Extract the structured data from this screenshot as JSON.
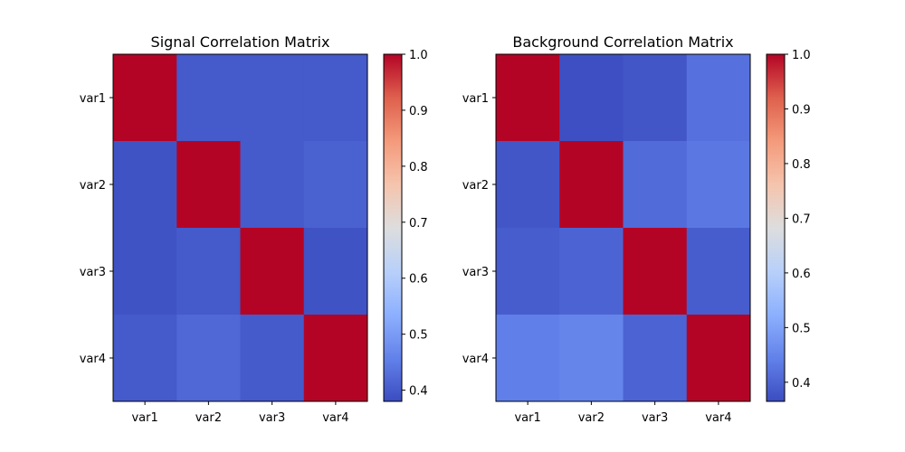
{
  "chart_data": [
    {
      "type": "heatmap",
      "title": "Signal Correlation Matrix",
      "x_categories": [
        "var1",
        "var2",
        "var3",
        "var4"
      ],
      "y_categories": [
        "var1",
        "var2",
        "var3",
        "var4"
      ],
      "values": [
        [
          1.0,
          0.4,
          0.4,
          0.4
        ],
        [
          0.39,
          1.0,
          0.4,
          0.41
        ],
        [
          0.39,
          0.4,
          1.0,
          0.39
        ],
        [
          0.4,
          0.42,
          0.4,
          1.0
        ]
      ],
      "colormap": "coolwarm",
      "colorbar": {
        "range": [
          0.38,
          1.0
        ],
        "ticks": [
          0.4,
          0.5,
          0.6,
          0.7,
          0.8,
          0.9,
          1.0
        ],
        "tick_labels": [
          "0.4",
          "0.5",
          "0.6",
          "0.7",
          "0.8",
          "0.9",
          "1.0"
        ]
      }
    },
    {
      "type": "heatmap",
      "title": "Background Correlation Matrix",
      "x_categories": [
        "var1",
        "var2",
        "var3",
        "var4"
      ],
      "y_categories": [
        "var1",
        "var2",
        "var3",
        "var4"
      ],
      "values": [
        [
          1.0,
          0.37,
          0.38,
          0.42
        ],
        [
          0.38,
          1.0,
          0.41,
          0.43
        ],
        [
          0.39,
          0.4,
          1.0,
          0.39
        ],
        [
          0.44,
          0.45,
          0.4,
          1.0
        ]
      ],
      "colormap": "coolwarm",
      "colorbar": {
        "range": [
          0.365,
          1.0
        ],
        "ticks": [
          0.4,
          0.5,
          0.6,
          0.7,
          0.8,
          0.9,
          1.0
        ],
        "tick_labels": [
          "0.4",
          "0.5",
          "0.6",
          "0.7",
          "0.8",
          "0.9",
          "1.0"
        ]
      }
    }
  ]
}
